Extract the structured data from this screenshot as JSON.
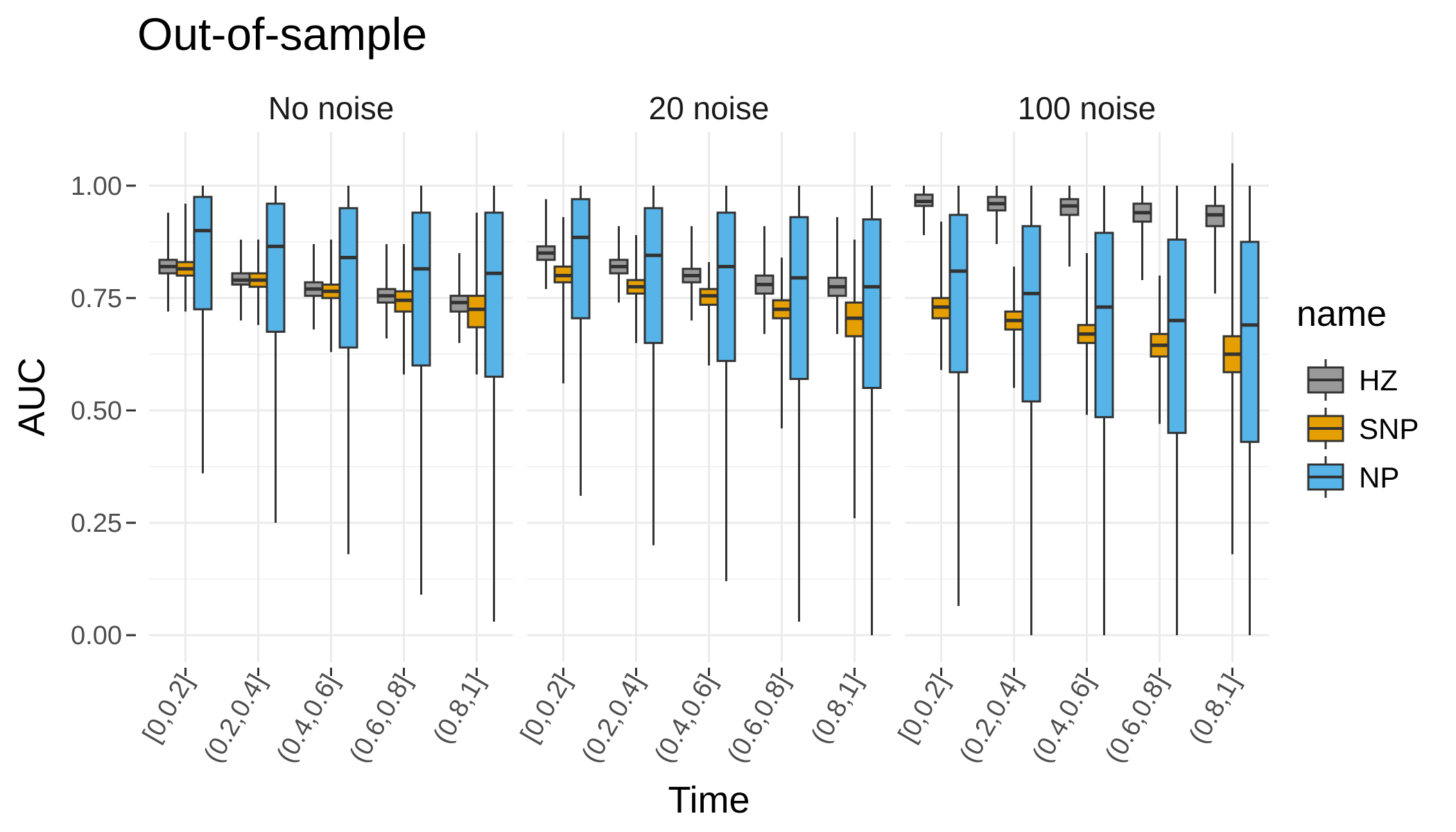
{
  "chart_data": {
    "type": "boxplot",
    "title": "Out-of-sample",
    "xlabel": "Time",
    "ylabel": "AUC",
    "ylim": [
      -0.06,
      1.12
    ],
    "yticks": [
      0.0,
      0.25,
      0.5,
      0.75,
      1.0
    ],
    "ytick_labels": [
      "0.00",
      "0.25",
      "0.50",
      "0.75",
      "1.00"
    ],
    "grid": true,
    "categories": [
      "[0,0.2]",
      "(0.2,0.4]",
      "(0.4,0.6]",
      "(0.6,0.8]",
      "(0.8,1]"
    ],
    "legend": {
      "title": "name",
      "position": "right",
      "entries": [
        {
          "name": "HZ",
          "color": "#999999"
        },
        {
          "name": "SNP",
          "color": "#E69F00"
        },
        {
          "name": "NP",
          "color": "#56B4E9"
        }
      ]
    },
    "panels": [
      {
        "title": "No noise",
        "series": [
          {
            "name": "HZ",
            "boxes": [
              {
                "lower_whisker": 0.72,
                "q1": 0.805,
                "median": 0.82,
                "q3": 0.835,
                "upper_whisker": 0.94
              },
              {
                "lower_whisker": 0.7,
                "q1": 0.78,
                "median": 0.79,
                "q3": 0.805,
                "upper_whisker": 0.88
              },
              {
                "lower_whisker": 0.68,
                "q1": 0.755,
                "median": 0.77,
                "q3": 0.785,
                "upper_whisker": 0.87
              },
              {
                "lower_whisker": 0.66,
                "q1": 0.74,
                "median": 0.755,
                "q3": 0.77,
                "upper_whisker": 0.87
              },
              {
                "lower_whisker": 0.65,
                "q1": 0.72,
                "median": 0.74,
                "q3": 0.755,
                "upper_whisker": 0.85
              }
            ]
          },
          {
            "name": "SNP",
            "boxes": [
              {
                "lower_whisker": 0.72,
                "q1": 0.8,
                "median": 0.815,
                "q3": 0.83,
                "upper_whisker": 0.96
              },
              {
                "lower_whisker": 0.69,
                "q1": 0.775,
                "median": 0.79,
                "q3": 0.805,
                "upper_whisker": 0.88
              },
              {
                "lower_whisker": 0.63,
                "q1": 0.75,
                "median": 0.765,
                "q3": 0.78,
                "upper_whisker": 0.88
              },
              {
                "lower_whisker": 0.58,
                "q1": 0.72,
                "median": 0.745,
                "q3": 0.765,
                "upper_whisker": 0.87
              },
              {
                "lower_whisker": 0.58,
                "q1": 0.685,
                "median": 0.725,
                "q3": 0.755,
                "upper_whisker": 0.94
              }
            ]
          },
          {
            "name": "NP",
            "boxes": [
              {
                "lower_whisker": 0.36,
                "q1": 0.725,
                "median": 0.9,
                "q3": 0.975,
                "upper_whisker": 1.0
              },
              {
                "lower_whisker": 0.25,
                "q1": 0.675,
                "median": 0.865,
                "q3": 0.96,
                "upper_whisker": 1.0
              },
              {
                "lower_whisker": 0.18,
                "q1": 0.64,
                "median": 0.84,
                "q3": 0.95,
                "upper_whisker": 1.0
              },
              {
                "lower_whisker": 0.09,
                "q1": 0.6,
                "median": 0.815,
                "q3": 0.94,
                "upper_whisker": 1.0
              },
              {
                "lower_whisker": 0.03,
                "q1": 0.575,
                "median": 0.805,
                "q3": 0.94,
                "upper_whisker": 1.0
              }
            ]
          }
        ]
      },
      {
        "title": "20 noise",
        "series": [
          {
            "name": "HZ",
            "boxes": [
              {
                "lower_whisker": 0.77,
                "q1": 0.835,
                "median": 0.85,
                "q3": 0.865,
                "upper_whisker": 0.97
              },
              {
                "lower_whisker": 0.74,
                "q1": 0.805,
                "median": 0.82,
                "q3": 0.835,
                "upper_whisker": 0.91
              },
              {
                "lower_whisker": 0.7,
                "q1": 0.785,
                "median": 0.8,
                "q3": 0.815,
                "upper_whisker": 0.91
              },
              {
                "lower_whisker": 0.67,
                "q1": 0.76,
                "median": 0.78,
                "q3": 0.8,
                "upper_whisker": 0.91
              },
              {
                "lower_whisker": 0.67,
                "q1": 0.755,
                "median": 0.775,
                "q3": 0.795,
                "upper_whisker": 0.93
              }
            ]
          },
          {
            "name": "SNP",
            "boxes": [
              {
                "lower_whisker": 0.56,
                "q1": 0.785,
                "median": 0.8,
                "q3": 0.82,
                "upper_whisker": 0.93
              },
              {
                "lower_whisker": 0.65,
                "q1": 0.76,
                "median": 0.775,
                "q3": 0.79,
                "upper_whisker": 0.89
              },
              {
                "lower_whisker": 0.6,
                "q1": 0.735,
                "median": 0.755,
                "q3": 0.77,
                "upper_whisker": 0.83
              },
              {
                "lower_whisker": 0.46,
                "q1": 0.705,
                "median": 0.725,
                "q3": 0.745,
                "upper_whisker": 0.84
              },
              {
                "lower_whisker": 0.26,
                "q1": 0.665,
                "median": 0.705,
                "q3": 0.74,
                "upper_whisker": 0.88
              }
            ]
          },
          {
            "name": "NP",
            "boxes": [
              {
                "lower_whisker": 0.31,
                "q1": 0.705,
                "median": 0.885,
                "q3": 0.97,
                "upper_whisker": 1.0
              },
              {
                "lower_whisker": 0.2,
                "q1": 0.65,
                "median": 0.845,
                "q3": 0.95,
                "upper_whisker": 1.0
              },
              {
                "lower_whisker": 0.12,
                "q1": 0.61,
                "median": 0.82,
                "q3": 0.94,
                "upper_whisker": 1.0
              },
              {
                "lower_whisker": 0.03,
                "q1": 0.57,
                "median": 0.795,
                "q3": 0.93,
                "upper_whisker": 1.0
              },
              {
                "lower_whisker": 0.0,
                "q1": 0.55,
                "median": 0.775,
                "q3": 0.925,
                "upper_whisker": 1.0
              }
            ]
          }
        ]
      },
      {
        "title": "100 noise",
        "series": [
          {
            "name": "HZ",
            "boxes": [
              {
                "lower_whisker": 0.89,
                "q1": 0.955,
                "median": 0.965,
                "q3": 0.98,
                "upper_whisker": 1.0
              },
              {
                "lower_whisker": 0.87,
                "q1": 0.945,
                "median": 0.96,
                "q3": 0.975,
                "upper_whisker": 1.0
              },
              {
                "lower_whisker": 0.82,
                "q1": 0.935,
                "median": 0.955,
                "q3": 0.97,
                "upper_whisker": 1.0
              },
              {
                "lower_whisker": 0.79,
                "q1": 0.92,
                "median": 0.94,
                "q3": 0.96,
                "upper_whisker": 1.0
              },
              {
                "lower_whisker": 0.76,
                "q1": 0.91,
                "median": 0.935,
                "q3": 0.955,
                "upper_whisker": 1.0
              }
            ]
          },
          {
            "name": "SNP",
            "boxes": [
              {
                "lower_whisker": 0.59,
                "q1": 0.705,
                "median": 0.73,
                "q3": 0.75,
                "upper_whisker": 0.92
              },
              {
                "lower_whisker": 0.55,
                "q1": 0.68,
                "median": 0.7,
                "q3": 0.72,
                "upper_whisker": 0.82
              },
              {
                "lower_whisker": 0.49,
                "q1": 0.65,
                "median": 0.67,
                "q3": 0.69,
                "upper_whisker": 0.85
              },
              {
                "lower_whisker": 0.47,
                "q1": 0.62,
                "median": 0.645,
                "q3": 0.67,
                "upper_whisker": 0.8
              },
              {
                "lower_whisker": 0.18,
                "q1": 0.585,
                "median": 0.625,
                "q3": 0.665,
                "upper_whisker": 1.05
              }
            ]
          },
          {
            "name": "NP",
            "boxes": [
              {
                "lower_whisker": 0.065,
                "q1": 0.585,
                "median": 0.81,
                "q3": 0.935,
                "upper_whisker": 1.0
              },
              {
                "lower_whisker": 0.0,
                "q1": 0.52,
                "median": 0.76,
                "q3": 0.91,
                "upper_whisker": 1.0
              },
              {
                "lower_whisker": 0.0,
                "q1": 0.485,
                "median": 0.73,
                "q3": 0.895,
                "upper_whisker": 1.0
              },
              {
                "lower_whisker": 0.0,
                "q1": 0.45,
                "median": 0.7,
                "q3": 0.88,
                "upper_whisker": 1.0
              },
              {
                "lower_whisker": 0.0,
                "q1": 0.43,
                "median": 0.69,
                "q3": 0.875,
                "upper_whisker": 1.0
              }
            ]
          }
        ]
      }
    ]
  }
}
